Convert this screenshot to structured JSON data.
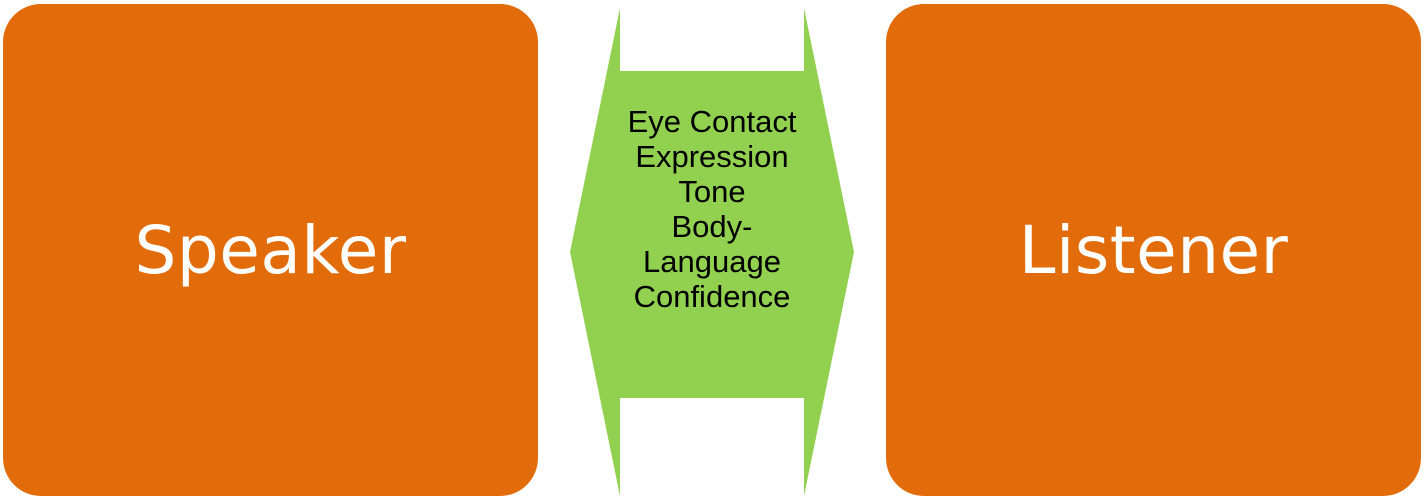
{
  "colors": {
    "box_fill": "#e36c0a",
    "arrow_fill": "#92d050",
    "box_text": "#ffffff",
    "arrow_text": "#000000"
  },
  "left_box": {
    "label": "Speaker"
  },
  "right_box": {
    "label": "Listener"
  },
  "connector": {
    "shape": "double-headed-arrow",
    "lines": [
      "Eye Contact",
      "Expression",
      "Tone",
      "Body-",
      "Language",
      "Confidence"
    ]
  }
}
